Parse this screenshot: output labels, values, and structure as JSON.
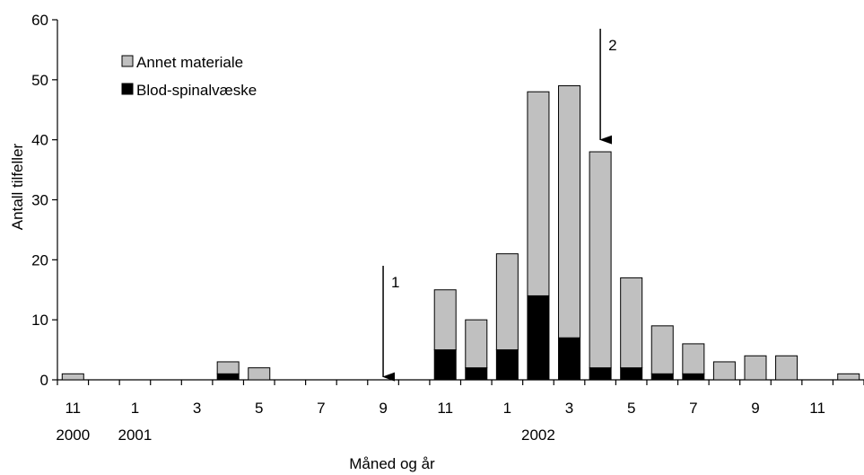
{
  "chart_data": {
    "type": "bar",
    "stacked": true,
    "xlabel": "Måned og år",
    "ylabel": "Antall tilfeller",
    "ylim": [
      0,
      60
    ],
    "yticks": [
      0,
      10,
      20,
      30,
      40,
      50,
      60
    ],
    "grid": false,
    "legend_position": "top-left",
    "months": [
      "2000-11",
      "2000-12",
      "2001-01",
      "2001-02",
      "2001-03",
      "2001-04",
      "2001-05",
      "2001-06",
      "2001-07",
      "2001-08",
      "2001-09",
      "2001-10",
      "2001-11",
      "2001-12",
      "2002-01",
      "2002-02",
      "2002-03",
      "2002-04",
      "2002-05",
      "2002-06",
      "2002-07",
      "2002-08",
      "2002-09",
      "2002-10",
      "2002-11",
      "2002-12"
    ],
    "xtick_labels": [
      "11",
      "",
      "1",
      "",
      "3",
      "",
      "5",
      "",
      "7",
      "",
      "9",
      "",
      "11",
      "",
      "1",
      "",
      "3",
      "",
      "5",
      "",
      "7",
      "",
      "9",
      "",
      "11",
      ""
    ],
    "year_labels": [
      {
        "month": "2000-11",
        "label": "2000"
      },
      {
        "month": "2001-01",
        "label": "2001"
      },
      {
        "month": "2002-02",
        "label": "2002"
      }
    ],
    "series": [
      {
        "name": "Blod-spinalvæske",
        "color": "#000000",
        "values": [
          0,
          0,
          0,
          0,
          0,
          1,
          0,
          0,
          0,
          0,
          0,
          0,
          5,
          2,
          5,
          14,
          7,
          2,
          2,
          1,
          1,
          0,
          0,
          0,
          0,
          0
        ]
      },
      {
        "name": "Annet materiale",
        "color": "#c0c0c0",
        "values": [
          1,
          0,
          0,
          0,
          0,
          2,
          2,
          0,
          0,
          0,
          0,
          0,
          10,
          8,
          16,
          34,
          42,
          36,
          15,
          8,
          5,
          3,
          4,
          4,
          0,
          1
        ]
      }
    ],
    "legend": [
      "Annet materiale",
      "Blod-spinalvæske"
    ],
    "annotations": [
      {
        "label": "1",
        "month": "2001-09",
        "y_top": 19,
        "y_bottom": 0.5
      },
      {
        "label": "2",
        "month": "2002-04",
        "y_top": 58.5,
        "y_bottom": 40
      }
    ]
  }
}
